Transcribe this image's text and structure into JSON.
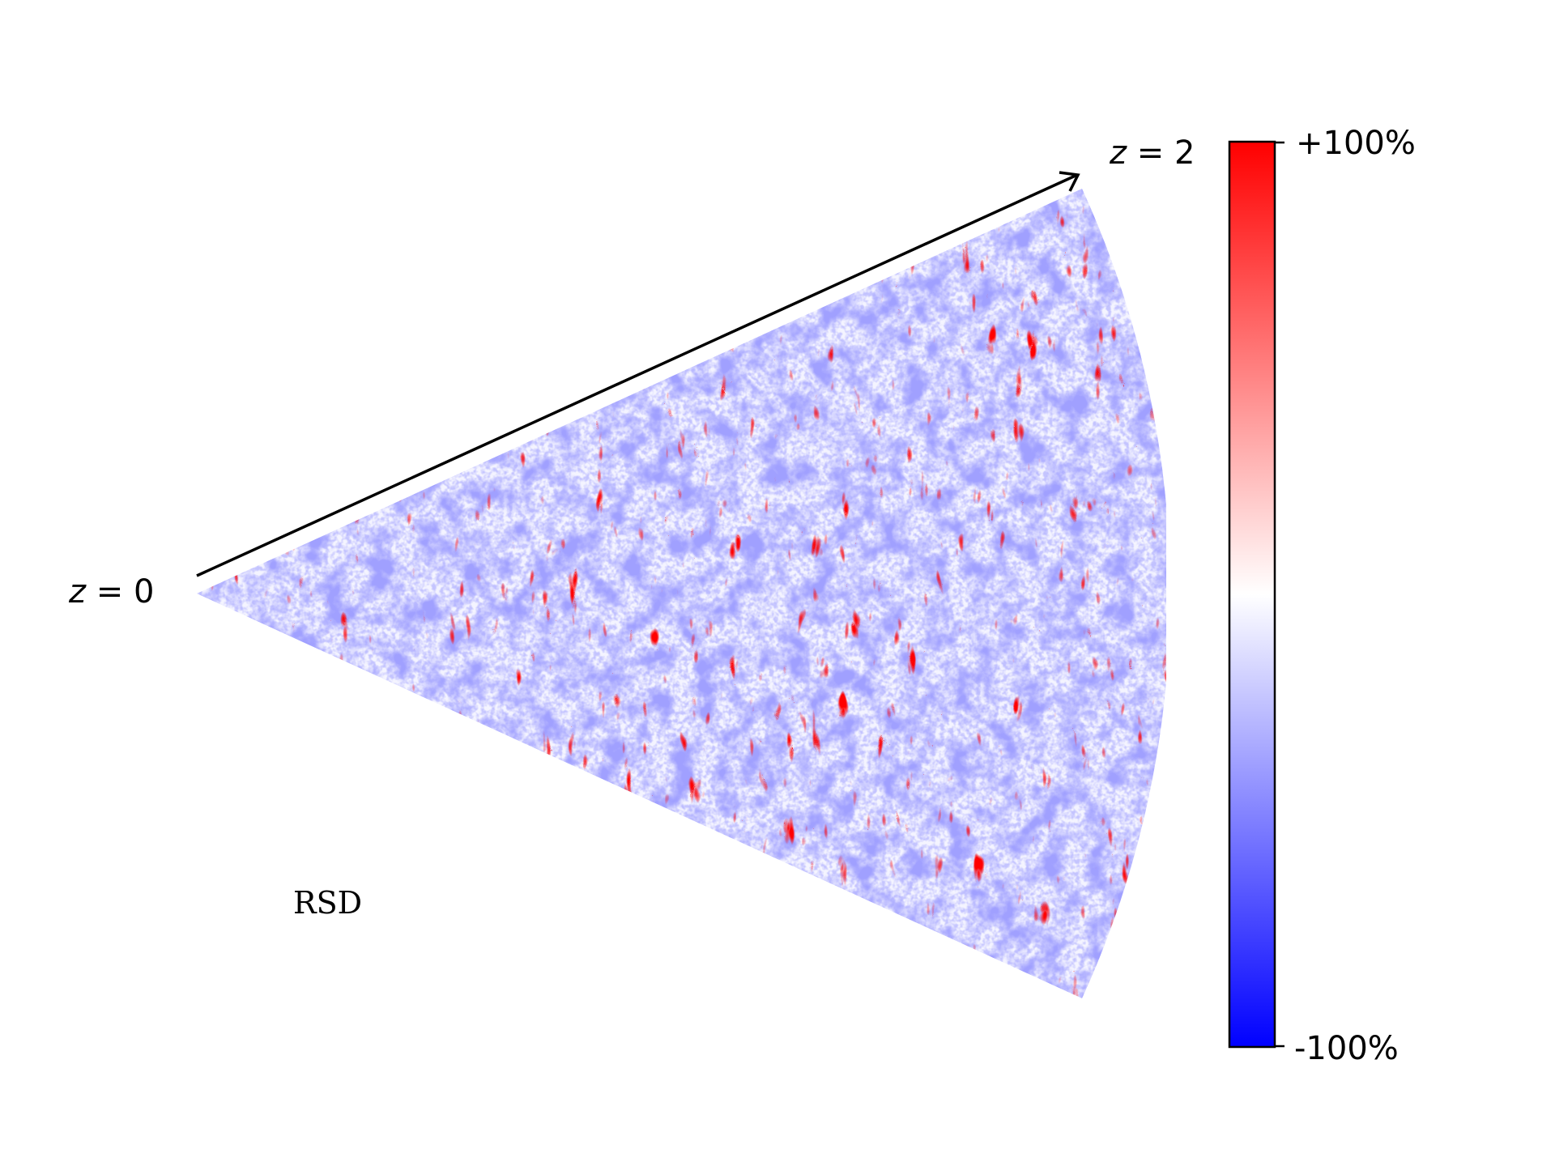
{
  "figure": {
    "start_label_var": "z",
    "start_label_rest": " = 0",
    "end_label_var": "z",
    "end_label_rest": " = 2",
    "panel_label": "RSD"
  },
  "colorbar": {
    "max_label": "+100%",
    "min_label": "-100%",
    "colors": [
      "#0000ff",
      "#ffffff",
      "#ff0000"
    ]
  },
  "chart_data": {
    "type": "heatmap",
    "title": "",
    "colorbar_range": [
      "-100%",
      "+100%"
    ],
    "axis_labels": [
      "z = 0",
      "z = 2"
    ]
  }
}
